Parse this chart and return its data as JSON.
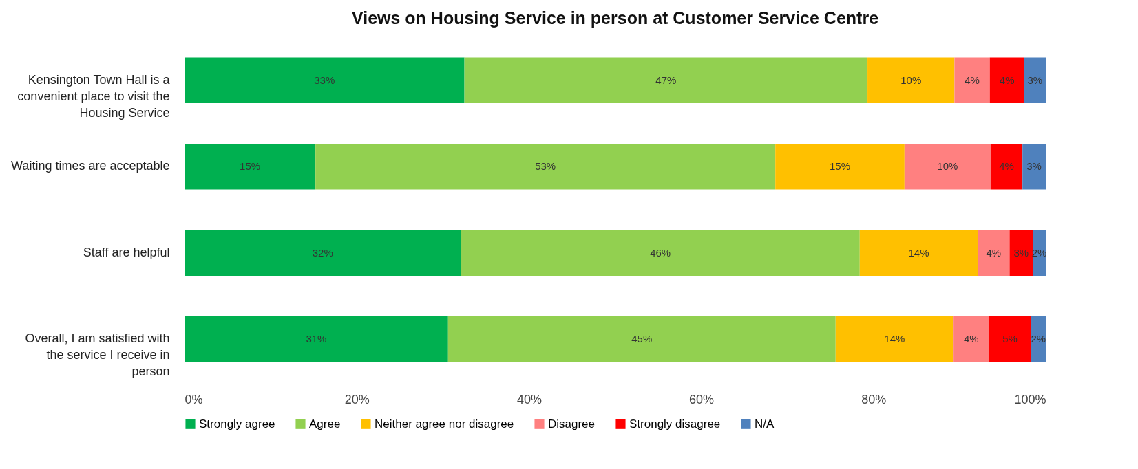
{
  "chart_data": {
    "type": "bar",
    "orientation": "horizontal",
    "stacked": true,
    "title": "Views on Housing Service in person at Customer Service Centre",
    "categories": [
      "Kensington Town Hall is a convenient place to visit the Housing Service",
      "Waiting times are acceptable",
      "Staff are helpful",
      "Overall, I am satisfied with the service I receive in person"
    ],
    "series": [
      {
        "name": "Strongly agree",
        "color": "#00b050",
        "values": [
          32.5,
          15.2,
          32.1,
          30.6
        ],
        "value_labels": [
          "33%",
          "15%",
          "32%",
          "31%"
        ]
      },
      {
        "name": "Agree",
        "color": "#92d050",
        "values": [
          46.8,
          53.4,
          46.3,
          45.0
        ],
        "value_labels": [
          "47%",
          "53%",
          "46%",
          "45%"
        ]
      },
      {
        "name": "Neither agree nor disagree",
        "color": "#ffc000",
        "values": [
          10.1,
          15.0,
          13.7,
          13.7
        ],
        "value_labels": [
          "10%",
          "15%",
          "14%",
          "14%"
        ]
      },
      {
        "name": "Disagree",
        "color": "#ff8080",
        "values": [
          4.1,
          10.0,
          3.7,
          4.1
        ],
        "value_labels": [
          "4%",
          "10%",
          "4%",
          "4%"
        ]
      },
      {
        "name": "Strongly disagree",
        "color": "#ff0000",
        "values": [
          4.0,
          3.7,
          2.7,
          4.9
        ],
        "value_labels": [
          "4%",
          "4%",
          "3%",
          "5%"
        ]
      },
      {
        "name": "N/A",
        "color": "#4f81bd",
        "values": [
          2.5,
          2.7,
          1.5,
          1.7
        ],
        "value_labels": [
          "3%",
          "3%",
          "2%",
          "2%"
        ]
      }
    ],
    "xlim": [
      0,
      100
    ],
    "xticks": [
      {
        "value": 0,
        "label": "0%"
      },
      {
        "value": 20,
        "label": "20%"
      },
      {
        "value": 40,
        "label": "40%"
      },
      {
        "value": 60,
        "label": "60%"
      },
      {
        "value": 80,
        "label": "80%"
      },
      {
        "value": 100,
        "label": "100%"
      }
    ],
    "grid": false,
    "legend": "bottom"
  }
}
